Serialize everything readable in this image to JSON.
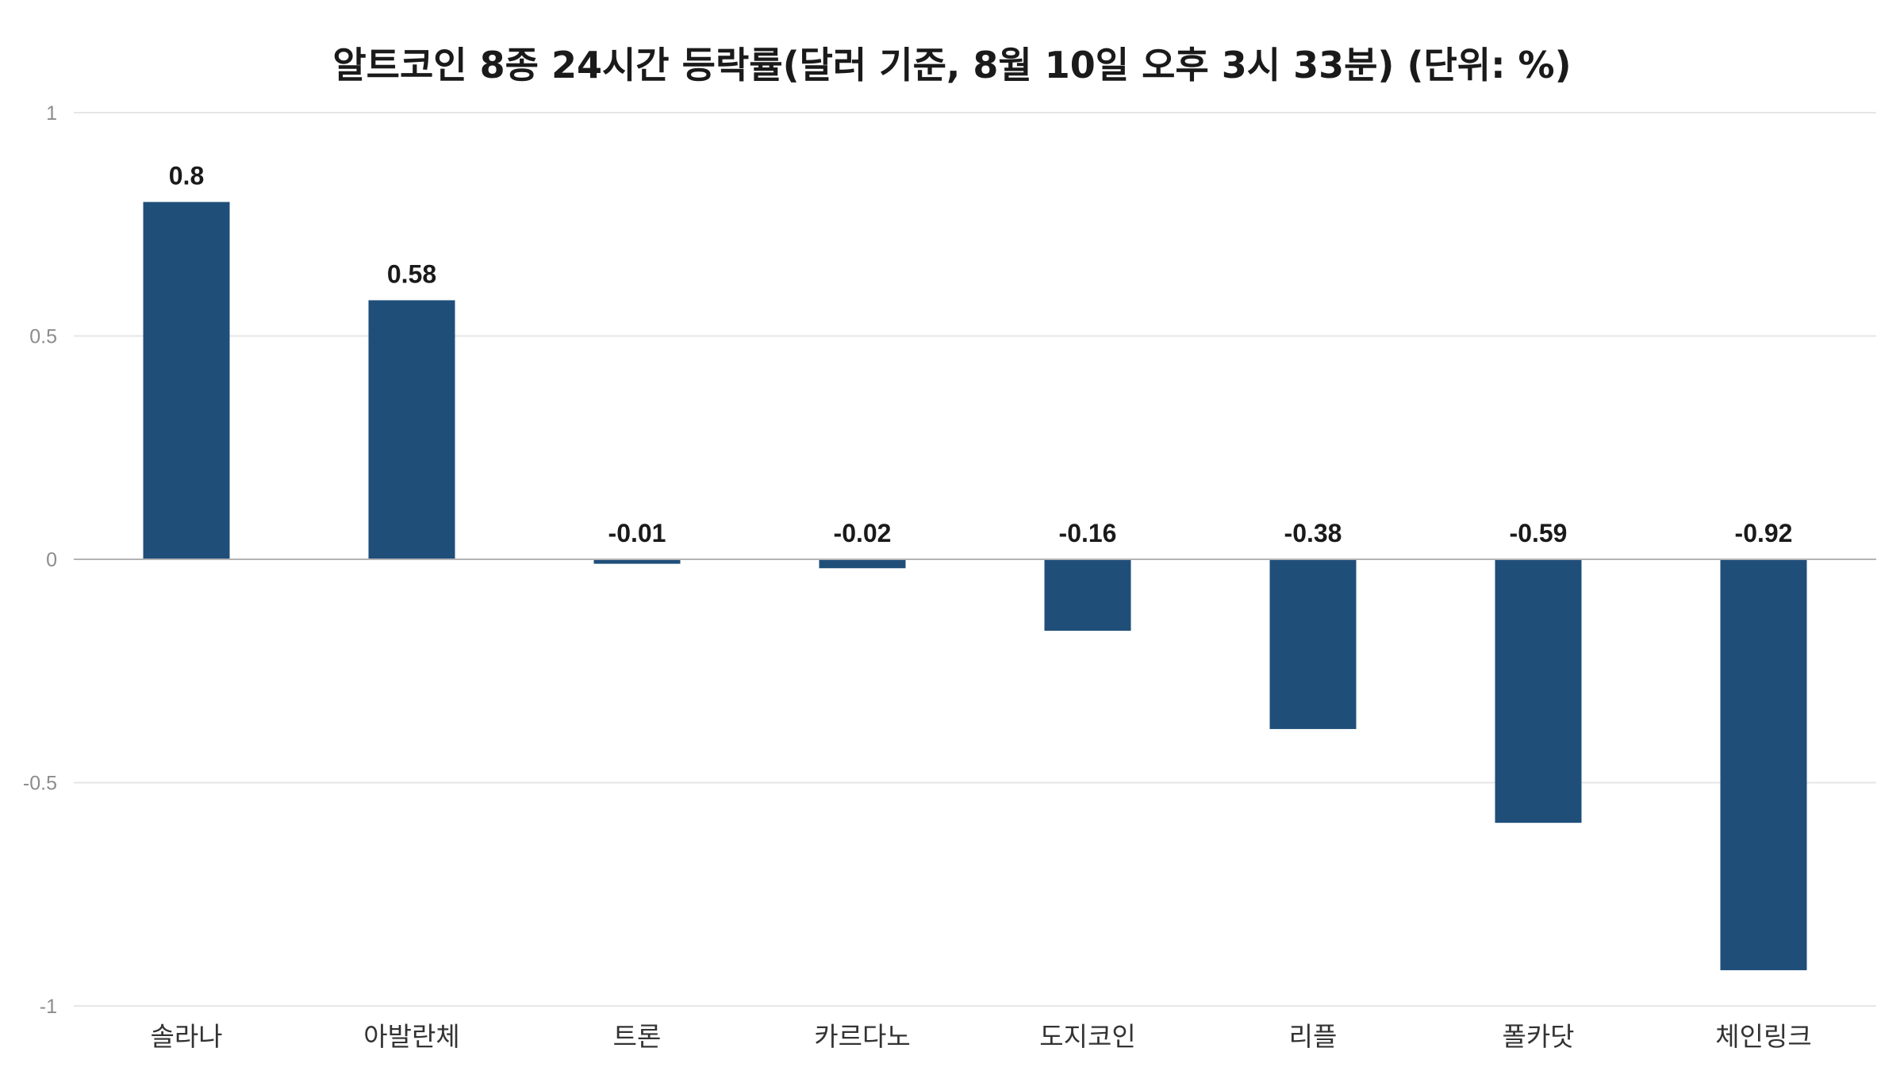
{
  "chart_data": {
    "type": "bar",
    "title": "알트코인 8종 24시간 등락률(달러 기준, 8월 10일 오후 3시 33분) (단위: %)",
    "xlabel": "",
    "ylabel": "",
    "categories": [
      "솔라나",
      "아발란체",
      "트론",
      "카르다노",
      "도지코인",
      "리플",
      "폴카닷",
      "체인링크"
    ],
    "values": [
      0.8,
      0.58,
      -0.01,
      -0.02,
      -0.16,
      -0.38,
      -0.59,
      -0.92
    ],
    "data_labels": [
      "0.8",
      "0.58",
      "-0.01",
      "-0.02",
      "-0.16",
      "-0.38",
      "-0.59",
      "-0.92"
    ],
    "ylim": [
      -1,
      1
    ],
    "yticks": [
      1,
      0.5,
      0,
      -0.5,
      -1
    ],
    "ytick_labels": [
      "1",
      "0.5",
      "0",
      "-0.5",
      "-1"
    ],
    "grid": true,
    "legend": "none",
    "bar_color": "#1f4e79"
  }
}
